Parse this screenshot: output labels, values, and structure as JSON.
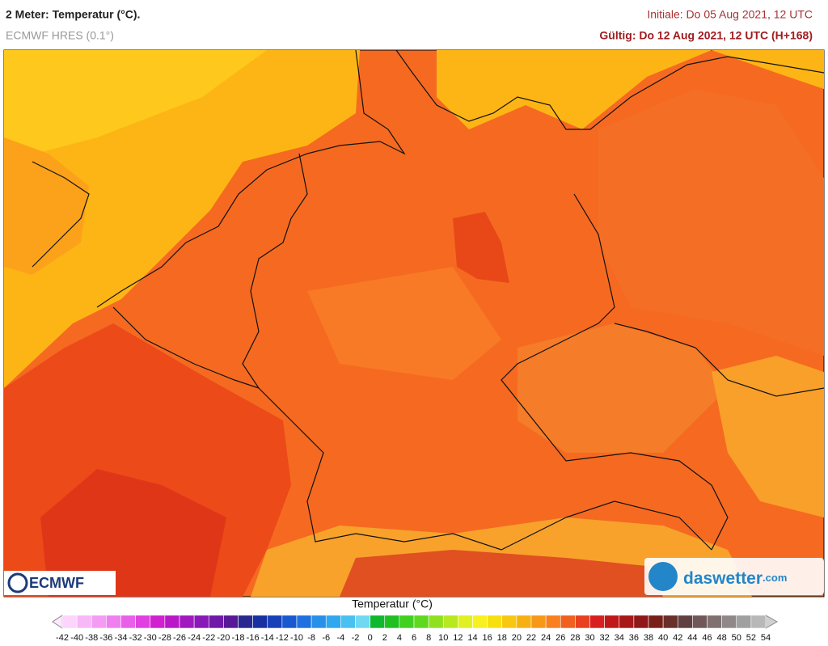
{
  "header": {
    "title": "2 Meter: Temperatur (°C).",
    "subtitle": "ECMWF HRES (0.1°)",
    "initial": "Initiale: Do 05 Aug 2021, 12 UTC",
    "valid": "Gültig: Do 12 Aug 2021, 12 UTC (H+168)"
  },
  "logos": {
    "left": "ECMWF",
    "right_main": "daswetter",
    "right_suffix": ".com"
  },
  "legend": {
    "title": "Temperatur (°C)",
    "ticks": [
      -42,
      -40,
      -38,
      -36,
      -34,
      -32,
      -30,
      -28,
      -26,
      -24,
      -22,
      -20,
      -18,
      -16,
      -14,
      -12,
      -10,
      -8,
      -6,
      -4,
      -2,
      0,
      2,
      4,
      6,
      8,
      10,
      12,
      14,
      16,
      18,
      20,
      22,
      24,
      26,
      28,
      30,
      32,
      34,
      36,
      38,
      40,
      42,
      44,
      46,
      48,
      50,
      52,
      54
    ],
    "colors": [
      "#fcd4fc",
      "#f8b8f8",
      "#f49cf4",
      "#f080f0",
      "#e860e8",
      "#e040e0",
      "#d020d0",
      "#b818c8",
      "#a018c0",
      "#8818b8",
      "#7018a8",
      "#581898",
      "#282890",
      "#1830a0",
      "#1840b8",
      "#1858d0",
      "#2070e0",
      "#2890e8",
      "#30a8f0",
      "#48c0f0",
      "#70d8f0",
      "#10b830",
      "#20c020",
      "#40d020",
      "#60d820",
      "#90e020",
      "#b8e820",
      "#e0f020",
      "#f8f020",
      "#f8e010",
      "#f8c810",
      "#f8b010",
      "#f89818",
      "#f88020",
      "#f06020",
      "#e84020",
      "#d82020",
      "#c01818",
      "#a81818",
      "#901818",
      "#782018",
      "#683028",
      "#604040",
      "#705858",
      "#807070",
      "#908888",
      "#a0a0a0",
      "#b8b8b8"
    ]
  }
}
